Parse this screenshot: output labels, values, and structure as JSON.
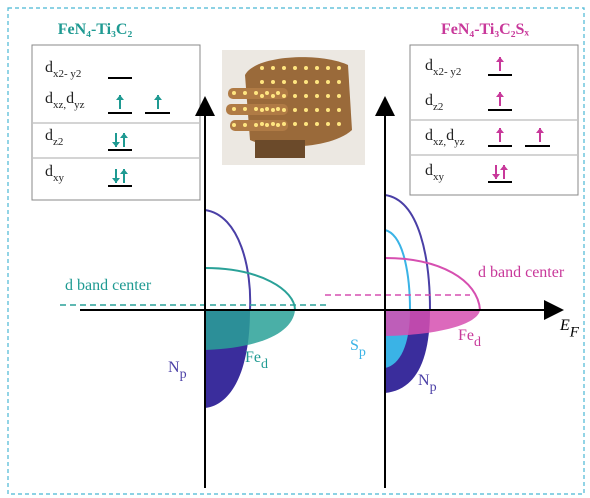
{
  "left_panel": {
    "title": "FeN₄-Ti₃C₂",
    "orbitals": [
      [
        "d",
        "x2- y2"
      ],
      [
        "d",
        "xz,",
        "d",
        "yz"
      ],
      [
        "d",
        "z2"
      ],
      [
        "d",
        "xy"
      ]
    ]
  },
  "right_panel": {
    "title": "FeN₄-Ti₃C₂Sₓ",
    "orbitals": [
      [
        "d",
        "x2- y2"
      ],
      [
        "d",
        "z2"
      ],
      [
        "d",
        "xz,",
        "d",
        "yz"
      ],
      [
        "d",
        "xy"
      ]
    ]
  },
  "plot": {
    "axis_label": [
      "E",
      "F"
    ],
    "left": {
      "d_band_center": "d band center",
      "n_label": [
        "N",
        "p"
      ],
      "fe_label": [
        "Fe",
        "d"
      ]
    },
    "right": {
      "d_band_center": "d band center",
      "s_label": [
        "S",
        "p"
      ],
      "n_label": [
        "N",
        "p"
      ],
      "fe_label": [
        "Fe",
        "d"
      ]
    }
  }
}
